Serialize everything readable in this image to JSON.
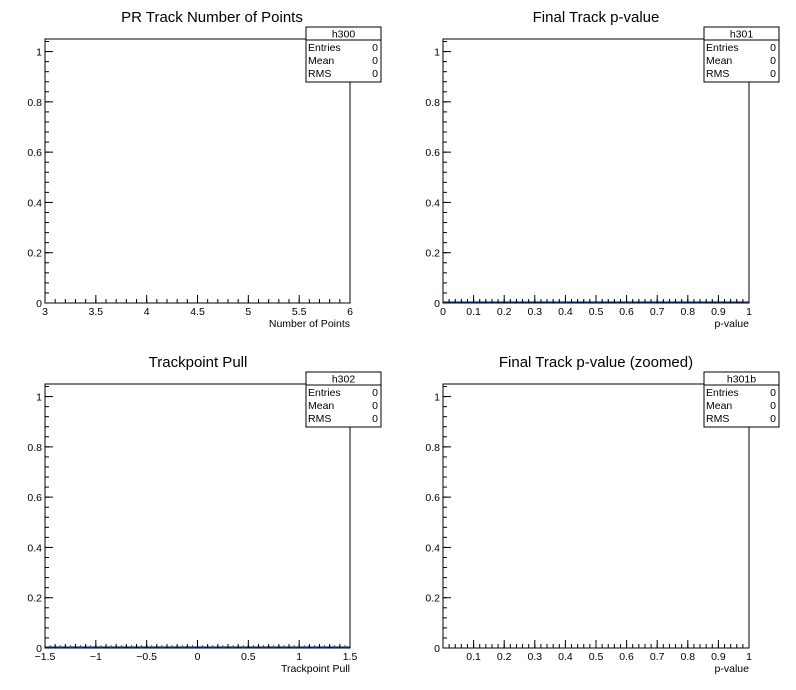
{
  "chart_data": [
    {
      "type": "bar",
      "title": "PR Track Number of Points",
      "xlabel": "Number of Points",
      "ylabel": "",
      "xlim": [
        3,
        6
      ],
      "ylim": [
        0,
        1.05
      ],
      "x_ticks": [
        "3",
        "3.5",
        "4",
        "4.5",
        "5",
        "5.5",
        "6"
      ],
      "y_ticks": [
        "0",
        "0.2",
        "0.4",
        "0.6",
        "0.8",
        "1"
      ],
      "x_tick_values": [
        3,
        3.5,
        4,
        4.5,
        5,
        5.5,
        6
      ],
      "y_tick_values": [
        0,
        0.2,
        0.4,
        0.6,
        0.8,
        1
      ],
      "bins": 0,
      "values": [],
      "stats": {
        "name": "h300",
        "rows": [
          {
            "label": "Entries",
            "value": "0"
          },
          {
            "label": "Mean",
            "value": "0"
          },
          {
            "label": "RMS",
            "value": "0"
          }
        ]
      }
    },
    {
      "type": "bar",
      "title": "Final Track p-value",
      "xlabel": "p-value",
      "ylabel": "",
      "xlim": [
        0,
        1
      ],
      "ylim": [
        0,
        1.05
      ],
      "x_ticks": [
        "0",
        "0.1",
        "0.2",
        "0.3",
        "0.4",
        "0.5",
        "0.6",
        "0.7",
        "0.8",
        "0.9",
        "1"
      ],
      "y_ticks": [
        "0",
        "0.2",
        "0.4",
        "0.6",
        "0.8",
        "1"
      ],
      "x_tick_values": [
        0,
        0.1,
        0.2,
        0.3,
        0.4,
        0.5,
        0.6,
        0.7,
        0.8,
        0.9,
        1
      ],
      "y_tick_values": [
        0,
        0.2,
        0.4,
        0.6,
        0.8,
        1
      ],
      "bins": 50,
      "values": [
        0,
        0,
        0,
        0,
        0,
        0,
        0,
        0,
        0,
        0,
        0,
        0,
        0,
        0,
        0,
        0,
        0,
        0,
        0,
        0,
        0,
        0,
        0,
        0,
        0,
        0,
        0,
        0,
        0,
        0,
        0,
        0,
        0,
        0,
        0,
        0,
        0,
        0,
        0,
        0,
        0,
        0,
        0,
        0,
        0,
        0,
        0,
        0,
        0,
        0
      ],
      "stats": {
        "name": "h301",
        "rows": [
          {
            "label": "Entries",
            "value": "0"
          },
          {
            "label": "Mean",
            "value": "0"
          },
          {
            "label": "RMS",
            "value": "0"
          }
        ]
      }
    },
    {
      "type": "bar",
      "title": "Trackpoint Pull",
      "xlabel": "Trackpoint Pull",
      "ylabel": "",
      "xlim": [
        -1.5,
        1.5
      ],
      "ylim": [
        0,
        1.05
      ],
      "x_ticks": [
        "−1.5",
        "−1",
        "−0.5",
        "0",
        "0.5",
        "1",
        "1.5"
      ],
      "y_ticks": [
        "0",
        "0.2",
        "0.4",
        "0.6",
        "0.8",
        "1"
      ],
      "x_tick_values": [
        -1.5,
        -1,
        -0.5,
        0,
        0.5,
        1,
        1.5
      ],
      "y_tick_values": [
        0,
        0.2,
        0.4,
        0.6,
        0.8,
        1
      ],
      "bins": 60,
      "values": [
        0,
        0,
        0,
        0,
        0,
        0,
        0,
        0,
        0,
        0,
        0,
        0,
        0,
        0,
        0,
        0,
        0,
        0,
        0,
        0,
        0,
        0,
        0,
        0,
        0,
        0,
        0,
        0,
        0,
        0,
        0,
        0,
        0,
        0,
        0,
        0,
        0,
        0,
        0,
        0,
        0,
        0,
        0,
        0,
        0,
        0,
        0,
        0,
        0,
        0,
        0,
        0,
        0,
        0,
        0,
        0,
        0,
        0,
        0,
        0
      ],
      "stats": {
        "name": "h302",
        "rows": [
          {
            "label": "Entries",
            "value": "0"
          },
          {
            "label": "Mean",
            "value": "0"
          },
          {
            "label": "RMS",
            "value": "0"
          }
        ]
      }
    },
    {
      "type": "bar",
      "title": "Final Track p-value (zoomed)",
      "xlabel": "p-value",
      "ylabel": "",
      "xlim": [
        0,
        1
      ],
      "ylim": [
        0,
        1.05
      ],
      "x_ticks": [
        "0.1",
        "0.2",
        "0.3",
        "0.4",
        "0.5",
        "0.6",
        "0.7",
        "0.8",
        "0.9",
        "1"
      ],
      "y_ticks": [
        "0",
        "0.2",
        "0.4",
        "0.6",
        "0.8",
        "1"
      ],
      "x_tick_values": [
        0.1,
        0.2,
        0.3,
        0.4,
        0.5,
        0.6,
        0.7,
        0.8,
        0.9,
        1
      ],
      "y_tick_values": [
        0,
        0.2,
        0.4,
        0.6,
        0.8,
        1
      ],
      "bins": 0,
      "values": [],
      "stats": {
        "name": "h301b",
        "rows": [
          {
            "label": "Entries",
            "value": "0"
          },
          {
            "label": "Mean",
            "value": "0"
          },
          {
            "label": "RMS",
            "value": "0"
          }
        ]
      }
    }
  ]
}
